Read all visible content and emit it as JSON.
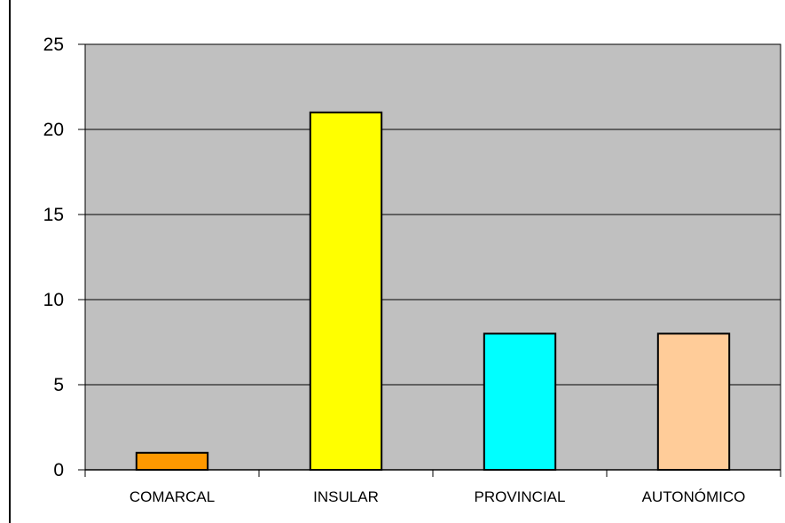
{
  "chart_data": {
    "type": "bar",
    "categories": [
      "COMARCAL",
      "INSULAR",
      "PROVINCIAL",
      "AUTONÓMICO"
    ],
    "values": [
      1,
      21,
      8,
      8
    ],
    "bar_colors": [
      "#ff9900",
      "#ffff00",
      "#00ffff",
      "#ffcc99"
    ],
    "plot_background": "#c0c0c0",
    "grid": true,
    "ylim": [
      0,
      25
    ],
    "yticks": [
      "0",
      "5",
      "10",
      "15",
      "20",
      "25"
    ],
    "title": "",
    "xlabel": "",
    "ylabel": ""
  }
}
